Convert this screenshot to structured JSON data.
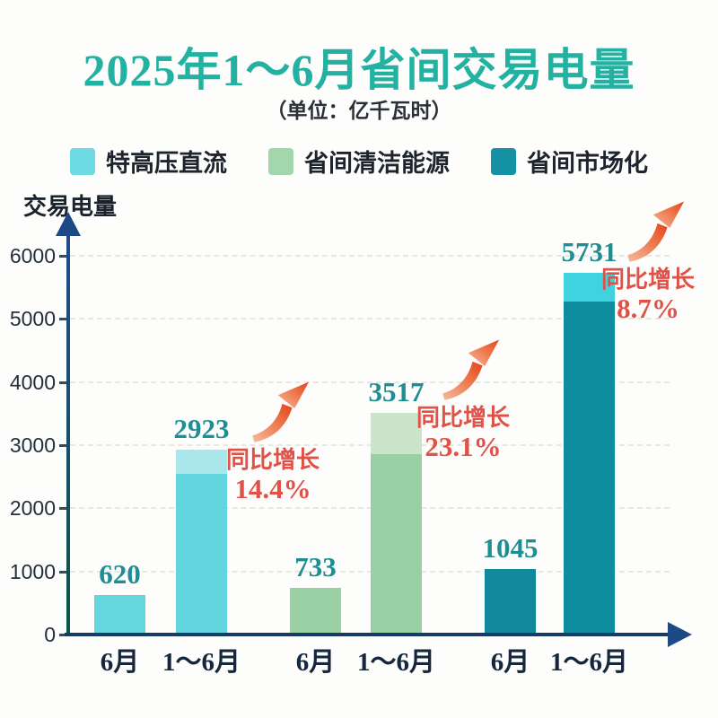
{
  "title": {
    "text": "2025年1～6月省间交易电量",
    "color": "#23b2a2"
  },
  "subtitle": {
    "text": "（单位：亿千瓦时）"
  },
  "legend": {
    "items": [
      {
        "label": "特高压直流",
        "color": "#6ddce2"
      },
      {
        "label": "省间清洁能源",
        "color": "#a4d6ac"
      },
      {
        "label": "省间市场化",
        "color": "#1492a4"
      }
    ]
  },
  "y_axis": {
    "label": "交易电量",
    "ticks": [
      0,
      1000,
      2000,
      3000,
      4000,
      5000,
      6000
    ],
    "max": 6000
  },
  "x_axis": {
    "labels": [
      "6月",
      "1～6月",
      "6月",
      "1～6月",
      "6月",
      "1～6月"
    ]
  },
  "bars": [
    {
      "category": "6月",
      "series": "特高压直流",
      "value": 620,
      "color": "#66d6de"
    },
    {
      "category": "1～6月",
      "series": "特高压直流",
      "value": 2923,
      "color": "#63d5de",
      "top_segment": {
        "from": 2543,
        "color": "#aae7ec"
      }
    },
    {
      "category": "6月",
      "series": "省间清洁能源",
      "value": 733,
      "color": "#9ad1a4"
    },
    {
      "category": "1～6月",
      "series": "省间清洁能源",
      "value": 3517,
      "color": "#99d0a3",
      "top_segment": {
        "from": 2857,
        "color": "#cbe5cd"
      }
    },
    {
      "category": "6月",
      "series": "省间市场化",
      "value": 1045,
      "color": "#10899c"
    },
    {
      "category": "1～6月",
      "series": "省间市场化",
      "value": 5731,
      "color": "#0e8d9f",
      "top_segment": {
        "from": 5272,
        "color": "#3ed3df"
      }
    }
  ],
  "annotations": [
    {
      "line1": "同比增长",
      "line2": "14.4%"
    },
    {
      "line1": "同比增长",
      "line2": "23.1%"
    },
    {
      "line1": "同比增长",
      "line2": "8.7%"
    }
  ],
  "style": {
    "annotation_color": "#e05148",
    "value_label_color": "#1f8e93",
    "arrow_gradient": [
      "#f6bb9e",
      "#ee7a4e",
      "#e5431c"
    ]
  },
  "chart_data": {
    "type": "bar",
    "title": "2025年1～6月省间交易电量",
    "unit_note": "（单位：亿千瓦时）",
    "ylabel": "交易电量",
    "xlabel": "",
    "ylim": [
      0,
      6000
    ],
    "y_ticks": [
      0,
      1000,
      2000,
      3000,
      4000,
      5000,
      6000
    ],
    "grid": true,
    "legend_position": "top",
    "categories": [
      "6月",
      "1～6月",
      "6月",
      "1～6月",
      "6月",
      "1～6月"
    ],
    "values": [
      620,
      2923,
      733,
      3517,
      1045,
      5731
    ],
    "series": [
      {
        "name": "特高压直流",
        "june": 620,
        "jan_to_june": 2923,
        "yoy_growth_pct": 14.4
      },
      {
        "name": "省间清洁能源",
        "june": 733,
        "jan_to_june": 3517,
        "yoy_growth_pct": 23.1
      },
      {
        "name": "省间市场化",
        "june": 1045,
        "jan_to_june": 5731,
        "yoy_growth_pct": 8.7
      }
    ],
    "annotations": [
      "同比增长 14.4%",
      "同比增长 23.1%",
      "同比增长 8.7%"
    ]
  }
}
